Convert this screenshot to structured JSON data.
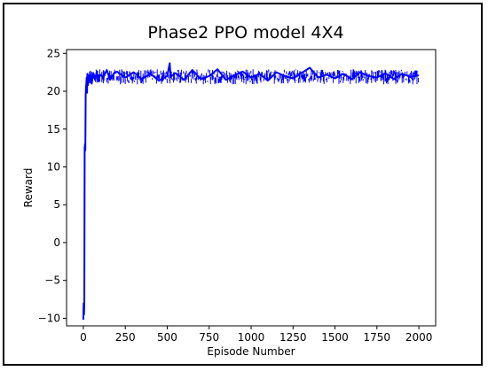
{
  "chart_data": {
    "type": "line",
    "title": "Phase2 PPO model 4X4",
    "xlabel": "Episode Number",
    "ylabel": "Reward",
    "xlim": [
      -100,
      2100
    ],
    "ylim": [
      -11,
      25.5
    ],
    "xticks": [
      0,
      250,
      500,
      750,
      1000,
      1250,
      1500,
      1750,
      2000
    ],
    "yticks": [
      -10,
      -5,
      0,
      5,
      10,
      15,
      20,
      25
    ],
    "xtick_labels": [
      "0",
      "250",
      "500",
      "750",
      "1000",
      "1250",
      "1500",
      "1750",
      "2000"
    ],
    "ytick_labels": [
      "−10",
      "−5",
      "0",
      "5",
      "10",
      "15",
      "20",
      "25"
    ],
    "grid": false,
    "series": [
      {
        "color": "#0000ff",
        "x": [
          0,
          2,
          4,
          6,
          8,
          10,
          12,
          14,
          16,
          18,
          20,
          22,
          24,
          26,
          28,
          30,
          35,
          40,
          50,
          60,
          70,
          80,
          90,
          100,
          120,
          140,
          160,
          180,
          200,
          250,
          300,
          350,
          400,
          450,
          500,
          515,
          520,
          550,
          600,
          650,
          700,
          750,
          800,
          850,
          900,
          950,
          1000,
          1050,
          1100,
          1150,
          1200,
          1250,
          1300,
          1350,
          1400,
          1450,
          1500,
          1550,
          1600,
          1650,
          1700,
          1750,
          1800,
          1850,
          1900,
          1950,
          2000
        ],
        "values": [
          -10.2,
          -8.0,
          -9.5,
          -7.9,
          12.5,
          13.0,
          12.2,
          19.5,
          20.5,
          21.0,
          21.8,
          19.8,
          22.3,
          21.5,
          20.8,
          22.0,
          21.2,
          22.5,
          21.0,
          22.4,
          21.5,
          22.6,
          21.3,
          22.2,
          21.9,
          22.8,
          21.5,
          22.3,
          22.6,
          21.8,
          22.5,
          21.6,
          22.3,
          21.4,
          22.0,
          23.7,
          21.9,
          22.4,
          21.5,
          22.8,
          21.6,
          22.0,
          22.9,
          21.5,
          22.1,
          22.6,
          21.8,
          22.3,
          21.4,
          22.5,
          22.0,
          21.7,
          22.4,
          23.1,
          21.8,
          22.2,
          21.7,
          22.3,
          21.6,
          22.5,
          22.0,
          21.8,
          22.4,
          21.6,
          22.3,
          21.9,
          22.1
        ]
      }
    ]
  }
}
